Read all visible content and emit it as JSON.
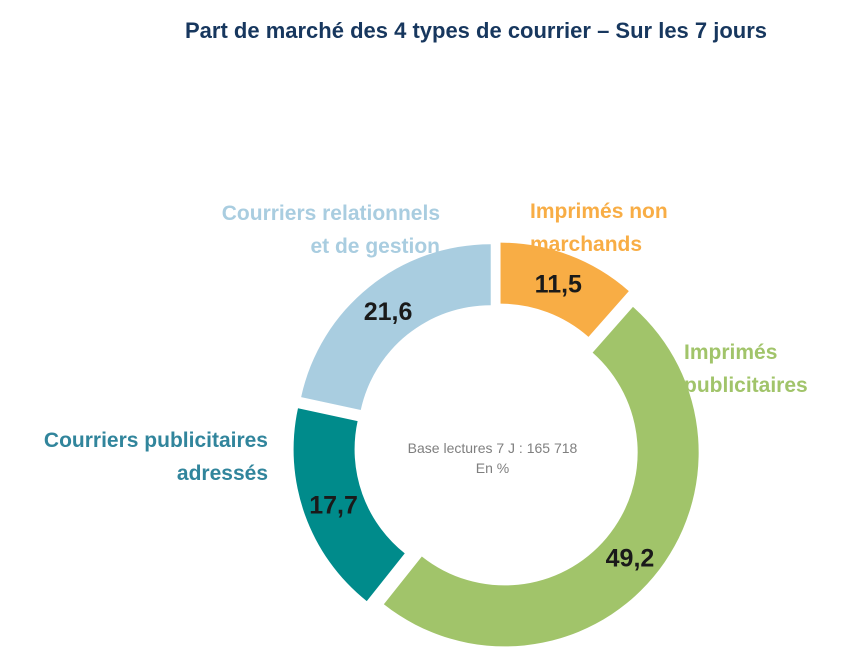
{
  "chart_data": {
    "type": "pie",
    "title": "Part de marché des 4 types de courrier – Sur les 7 jours",
    "center_note": [
      "Base  lectures 7 J : 165 718",
      "En %"
    ],
    "slices": [
      {
        "label": [
          "Imprimés non",
          "marchands"
        ],
        "value": 11.5,
        "value_label": "11,5",
        "color": "#f8ad45"
      },
      {
        "label": [
          "Imprimés",
          "publicitaires"
        ],
        "value": 49.2,
        "value_label": "49,2",
        "color": "#a1c46a"
      },
      {
        "label": [
          "Courriers publicitaires",
          "adressés"
        ],
        "value": 17.7,
        "value_label": "17,7",
        "color": "#008b8b"
      },
      {
        "label": [
          "Courriers relationnels",
          "et de gestion"
        ],
        "value": 21.6,
        "value_label": "21,6",
        "color": "#a9cde0"
      }
    ],
    "donut": true,
    "exploded": true,
    "data_labels": true,
    "legend": "none"
  }
}
